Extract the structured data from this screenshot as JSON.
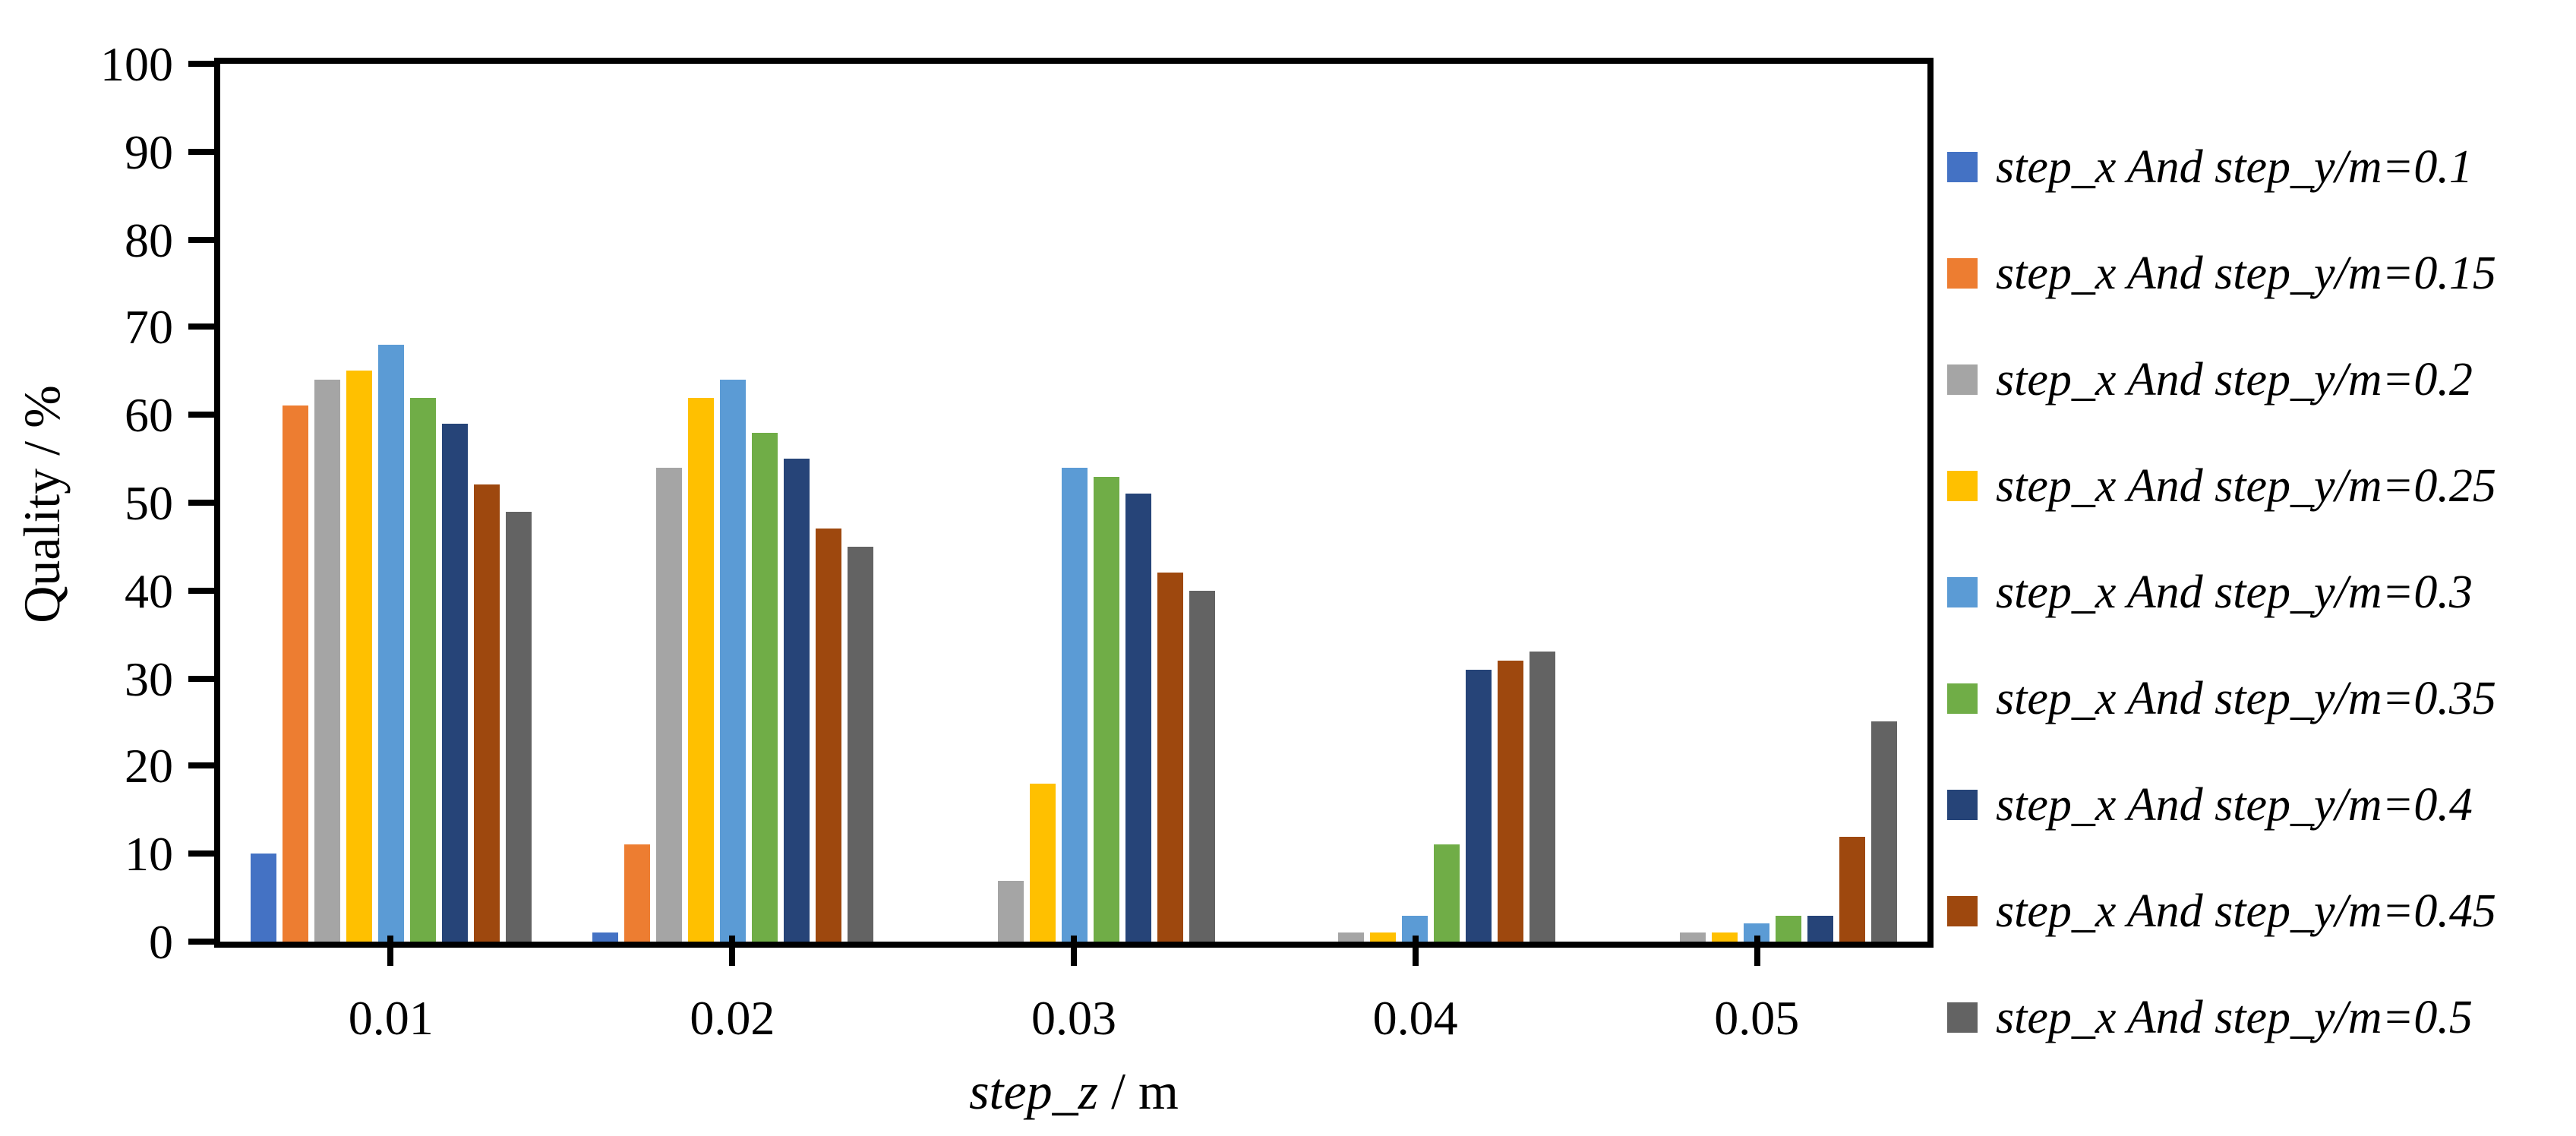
{
  "chart_data": {
    "type": "bar",
    "title": "",
    "categories": [
      "0.01",
      "0.02",
      "0.03",
      "0.04",
      "0.05"
    ],
    "x_axis_title": {
      "variable": "step_z",
      "unit": " / m"
    },
    "y_axis_title": "Quality / %",
    "ylim": [
      0,
      100
    ],
    "ytick_step": 10,
    "y_tick_labels": [
      "0",
      "10",
      "20",
      "30",
      "40",
      "50",
      "60",
      "70",
      "80",
      "90",
      "100"
    ],
    "grid": false,
    "legend_position": "right",
    "axis_color": "#000000",
    "background": "#FFFFFF",
    "series": [
      {
        "name": "step_x And step_y/m=0.1",
        "color": "#4472C4",
        "values": [
          10,
          1,
          0,
          0,
          0
        ]
      },
      {
        "name": "step_x And step_y/m=0.15",
        "color": "#ED7D31",
        "values": [
          61,
          11,
          0,
          0,
          0
        ]
      },
      {
        "name": "step_x And step_y/m=0.2",
        "color": "#A5A5A5",
        "values": [
          64,
          54,
          7,
          1,
          1
        ]
      },
      {
        "name": "step_x And step_y/m=0.25",
        "color": "#FFC000",
        "values": [
          65,
          62,
          18,
          1,
          1
        ]
      },
      {
        "name": "step_x And step_y/m=0.3",
        "color": "#5B9BD5",
        "values": [
          68,
          64,
          54,
          3,
          2
        ]
      },
      {
        "name": "step_x And step_y/m=0.35",
        "color": "#70AD47",
        "values": [
          62,
          58,
          53,
          11,
          3
        ]
      },
      {
        "name": "step_x And step_y/m=0.4",
        "color": "#264478",
        "values": [
          59,
          55,
          51,
          31,
          3
        ]
      },
      {
        "name": "step_x And step_y/m=0.45",
        "color": "#9E480E",
        "values": [
          52,
          47,
          42,
          32,
          12
        ]
      },
      {
        "name": "step_x And step_y/m=0.5",
        "color": "#636363",
        "values": [
          49,
          45,
          40,
          33,
          25
        ]
      }
    ]
  }
}
